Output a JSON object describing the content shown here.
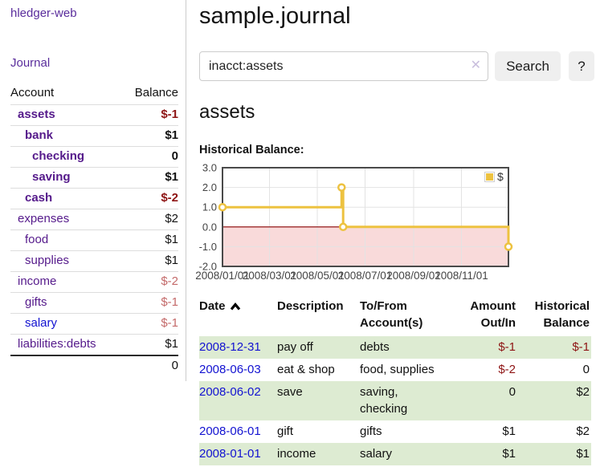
{
  "sidebar": {
    "brand": "hledger-web",
    "nav": {
      "journal_label": "Journal"
    },
    "table_headers": {
      "account": "Account",
      "balance": "Balance"
    },
    "accounts": [
      {
        "label": "assets",
        "depth": 1,
        "bold": true,
        "balance": "$-1"
      },
      {
        "label": "bank",
        "depth": 2,
        "bold": true,
        "balance": "$1"
      },
      {
        "label": "checking",
        "depth": 3,
        "bold": true,
        "balance": "0"
      },
      {
        "label": "saving",
        "depth": 3,
        "bold": true,
        "balance": "$1"
      },
      {
        "label": "cash",
        "depth": 2,
        "bold": true,
        "balance": "$-2"
      },
      {
        "label": "expenses",
        "depth": 1,
        "bold": false,
        "balance": "$2"
      },
      {
        "label": "food",
        "depth": 2,
        "bold": false,
        "balance": "$1"
      },
      {
        "label": "supplies",
        "depth": 2,
        "bold": false,
        "balance": "$1"
      },
      {
        "label": "income",
        "depth": 1,
        "bold": false,
        "balance": "$-2"
      },
      {
        "label": "gifts",
        "depth": 2,
        "bold": false,
        "balance": "$-1"
      },
      {
        "label": "salary",
        "depth": 2,
        "bold": false,
        "balance": "$-1",
        "unvisited": true
      },
      {
        "label": "liabilities:debts",
        "depth": 1,
        "bold": false,
        "balance": "$1"
      }
    ],
    "total": "0"
  },
  "header": {
    "title": "sample.journal"
  },
  "search": {
    "query": "inacct:assets",
    "clear_icon": "✕",
    "search_label": "Search",
    "help_label": "?"
  },
  "account_page": {
    "heading": "assets",
    "chart_label": "Historical Balance:"
  },
  "chart_data": {
    "type": "line",
    "step": true,
    "title": "Historical Balance",
    "x": [
      "2008-01-01",
      "2008-06-01",
      "2008-06-03",
      "2008-12-31"
    ],
    "series": [
      {
        "name": "$",
        "color": "#edc240",
        "values": [
          1,
          2,
          0,
          -1
        ]
      }
    ],
    "xlim": [
      "2008-01-01",
      "2008-12-31"
    ],
    "ylim": [
      -2,
      3
    ],
    "y_ticks": [
      3,
      2,
      1,
      0,
      -1,
      -2
    ],
    "x_ticks": [
      {
        "date": "2008-01-01",
        "label": "2008/01/01"
      },
      {
        "date": "2008-03-01",
        "label": "2008/03/01"
      },
      {
        "date": "2008-05-01",
        "label": "2008/05/01"
      },
      {
        "date": "2008-07-01",
        "label": "2008/07/01"
      },
      {
        "date": "2008-09-01",
        "label": "2008/09/01"
      },
      {
        "date": "2008-11-01",
        "label": "2008/11/01"
      }
    ],
    "grid": true,
    "legend_position": "top-right",
    "negative_fill": "#f9dada",
    "zero_line": "#8b0000",
    "plot_border": "#4a4a4a",
    "grid_color": "#e3e3e3"
  },
  "register": {
    "headers": {
      "date": "Date",
      "description": "Description",
      "accounts": "To/From\nAccount(s)",
      "amount": "Amount\nOut/In",
      "balance": "Historical\nBalance"
    },
    "rows": [
      {
        "date": "2008-12-31",
        "description": "pay off",
        "accounts": "debts",
        "amount": "$-1",
        "balance": "$-1"
      },
      {
        "date": "2008-06-03",
        "description": "eat & shop",
        "accounts": "food, supplies",
        "amount": "$-2",
        "balance": "0"
      },
      {
        "date": "2008-06-02",
        "description": "save",
        "accounts": "saving, checking",
        "amount": "0",
        "balance": "$2"
      },
      {
        "date": "2008-06-01",
        "description": "gift",
        "accounts": "gifts",
        "amount": "$1",
        "balance": "$2"
      },
      {
        "date": "2008-01-01",
        "description": "income",
        "accounts": "salary",
        "amount": "$1",
        "balance": "$1"
      }
    ]
  },
  "colors": {
    "accent_purple": "#551a8b",
    "link_blue": "#1212d1",
    "negative_strong": "#8e1414",
    "negative_soft": "#c46a6a",
    "row_stripe_green": "#ddebd2",
    "series_gold": "#edc240",
    "negative_region_pink": "#f9dada",
    "zero_line_red": "#8b0000",
    "button_gray": "#efefef"
  }
}
